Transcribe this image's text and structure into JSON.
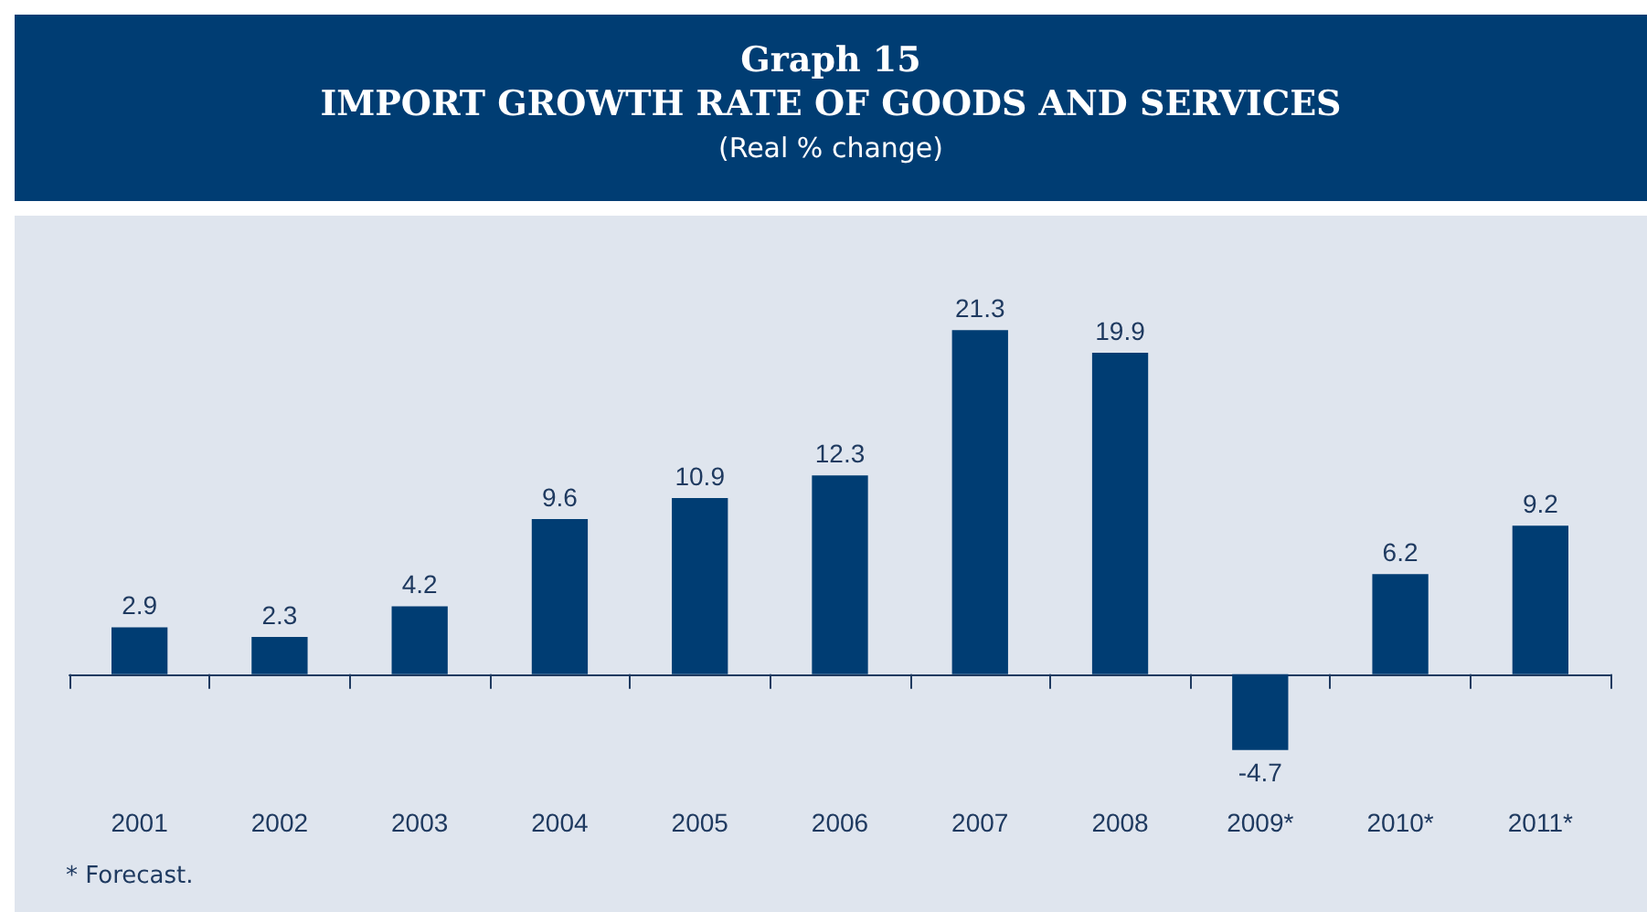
{
  "chart_data": {
    "type": "bar",
    "title": "IMPORT GROWTH RATE OF GOODS AND SERVICES",
    "subtitle": "(Real % change)",
    "annotations": [
      "Graph 15",
      "*  Forecast."
    ],
    "categories": [
      "2001",
      "2002",
      "2003",
      "2004",
      "2005",
      "2006",
      "2007",
      "2008",
      "2009*",
      "2010*",
      "2011*"
    ],
    "values": [
      2.9,
      2.3,
      4.2,
      9.6,
      10.9,
      12.3,
      21.3,
      19.9,
      -4.7,
      6.2,
      9.2
    ],
    "color": "#003d73",
    "data_labels": true
  }
}
